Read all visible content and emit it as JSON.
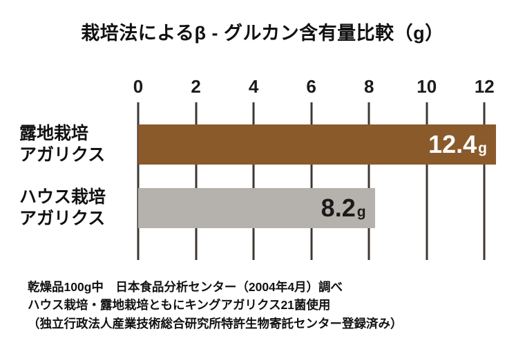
{
  "title": "栽培法によるβ - グルカン含有量比較（g）",
  "chart_data": {
    "type": "bar",
    "orientation": "horizontal",
    "title": "栽培法によるβ - グルカン含有量比較（g）",
    "categories": [
      {
        "line1": "露地栽培",
        "line2": "アガリクス"
      },
      {
        "line1": "ハウス栽培",
        "line2": "アガリクス"
      }
    ],
    "values": [
      12.4,
      8.2
    ],
    "value_labels": [
      "12.4",
      "8.2"
    ],
    "unit": "g",
    "ticks": [
      0,
      2,
      4,
      6,
      8,
      10,
      12
    ],
    "xlim": [
      0,
      12.4
    ],
    "grid": true,
    "legend": "none",
    "bar_colors": [
      "#8a5a2b",
      "#b5b2ae"
    ],
    "value_label_colors": [
      "#ffffff",
      "#1a1a1a"
    ],
    "gridline_color": "#3d3732",
    "axis_label_color": "#1a1a1a"
  },
  "footer": {
    "lines": [
      "乾燥品100g中　日本食品分析センター（2004年4月）調べ",
      "ハウス栽培・露地栽培ともにキングアガリクス21菌使用",
      "（独立行政法人産業技術総合研究所特許生物寄託センター登録済み）"
    ]
  }
}
